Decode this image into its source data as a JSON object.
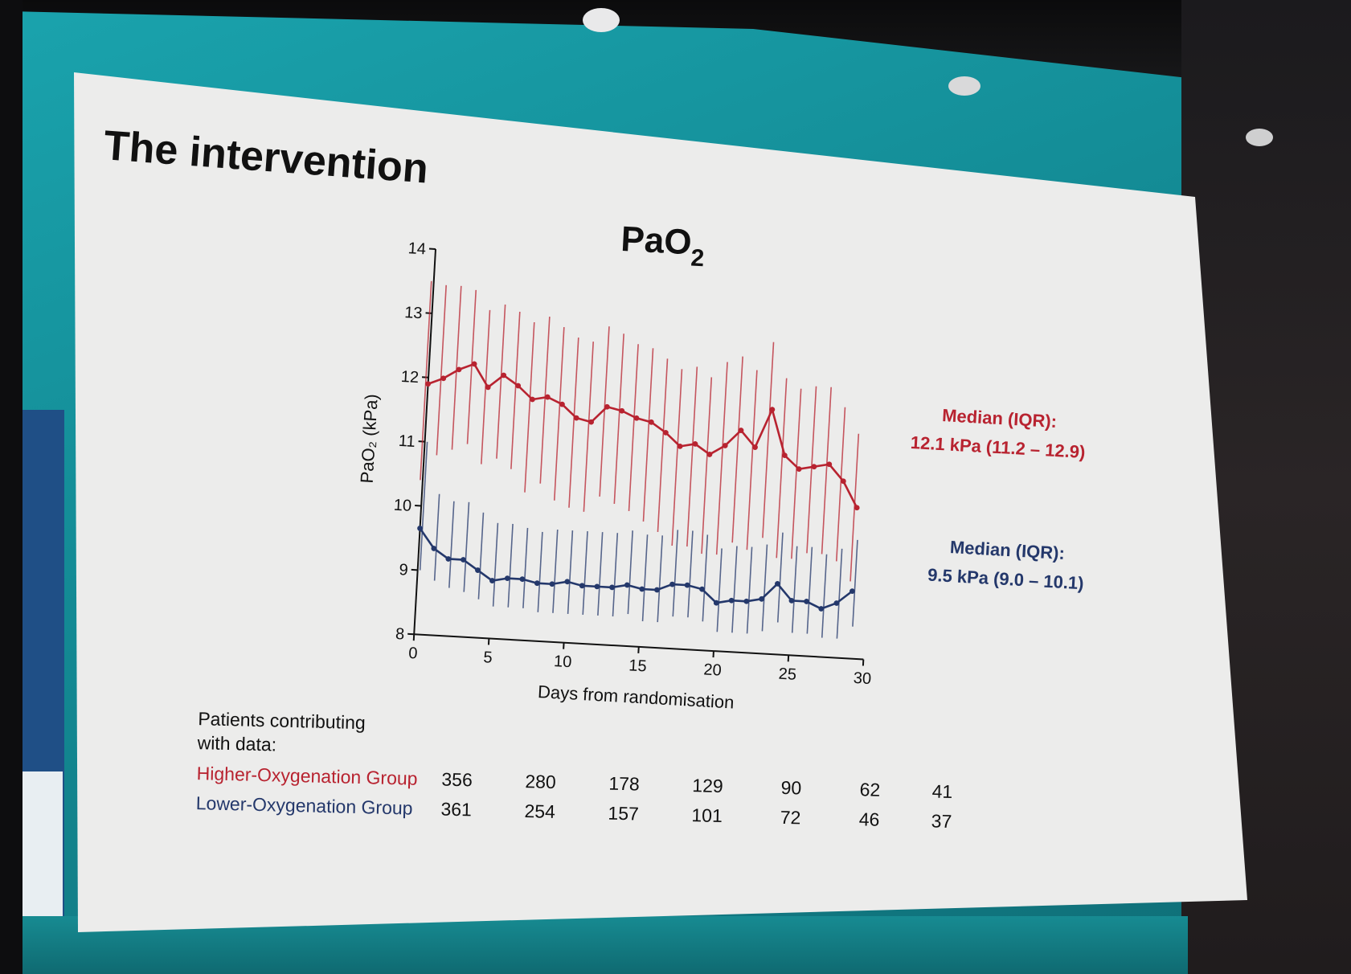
{
  "slide": {
    "title": "The intervention",
    "patients_label_line1": "Patients contributing",
    "patients_label_line2": "with data:"
  },
  "chart_data": {
    "type": "line",
    "title": "PaO",
    "title_subscript": "2",
    "ylabel": "PaO₂ (kPa)",
    "xlabel": "Days from randomisation",
    "xlim": [
      0,
      30
    ],
    "ylim": [
      8,
      14
    ],
    "x_ticks": [
      "0",
      "5",
      "10",
      "15",
      "20",
      "25",
      "30"
    ],
    "y_ticks": [
      "8",
      "9",
      "10",
      "11",
      "12",
      "13",
      "14"
    ],
    "x": [
      0,
      1,
      2,
      3,
      4,
      5,
      6,
      7,
      8,
      9,
      10,
      11,
      12,
      13,
      14,
      15,
      16,
      17,
      18,
      19,
      20,
      21,
      22,
      23,
      24,
      25,
      26,
      27,
      28,
      29
    ],
    "series": [
      {
        "name": "Higher-Oxygenation Group",
        "color": "#b82330",
        "median": [
          11.9,
          12.0,
          12.15,
          12.25,
          11.9,
          12.1,
          11.95,
          11.75,
          11.8,
          11.7,
          11.5,
          11.45,
          11.7,
          11.65,
          11.55,
          11.5,
          11.35,
          11.15,
          11.2,
          11.05,
          11.2,
          11.45,
          11.2,
          11.8,
          11.1,
          10.9,
          10.95,
          11.0,
          10.75,
          10.35
        ],
        "q1": [
          10.4,
          10.8,
          10.9,
          11.0,
          10.7,
          10.8,
          10.65,
          10.3,
          10.45,
          10.2,
          10.1,
          10.05,
          10.3,
          10.2,
          10.1,
          9.95,
          9.8,
          9.6,
          9.6,
          9.5,
          9.5,
          9.7,
          9.6,
          9.8,
          9.5,
          9.5,
          9.6,
          9.6,
          9.5,
          9.2
        ],
        "q3": [
          13.5,
          13.45,
          13.45,
          13.4,
          13.1,
          13.2,
          13.1,
          12.95,
          13.05,
          12.9,
          12.75,
          12.7,
          12.95,
          12.85,
          12.7,
          12.65,
          12.5,
          12.35,
          12.4,
          12.25,
          12.5,
          12.6,
          12.4,
          12.85,
          12.3,
          12.15,
          12.2,
          12.2,
          11.9,
          11.5
        ],
        "annotation_line1": "Median (IQR):",
        "annotation_line2": "12.1 kPa (11.2 – 12.9)"
      },
      {
        "name": "Lower-Oxygenation Group",
        "color": "#24386b",
        "median": [
          9.65,
          9.35,
          9.2,
          9.2,
          9.05,
          8.9,
          8.95,
          8.95,
          8.9,
          8.9,
          8.95,
          8.9,
          8.9,
          8.9,
          8.95,
          8.9,
          8.9,
          9.0,
          9.0,
          8.95,
          8.75,
          8.8,
          8.8,
          8.85,
          9.1,
          8.85,
          8.85,
          8.75,
          8.85,
          9.05
        ],
        "q1": [
          9.0,
          8.85,
          8.75,
          8.7,
          8.6,
          8.5,
          8.5,
          8.5,
          8.45,
          8.45,
          8.45,
          8.45,
          8.45,
          8.45,
          8.5,
          8.4,
          8.4,
          8.5,
          8.5,
          8.45,
          8.3,
          8.3,
          8.3,
          8.35,
          8.5,
          8.35,
          8.35,
          8.3,
          8.3,
          8.5
        ],
        "q3": [
          11.0,
          10.2,
          10.1,
          10.1,
          9.95,
          9.8,
          9.8,
          9.75,
          9.7,
          9.75,
          9.75,
          9.75,
          9.75,
          9.75,
          9.8,
          9.75,
          9.75,
          9.85,
          9.85,
          9.8,
          9.6,
          9.65,
          9.65,
          9.7,
          9.9,
          9.7,
          9.7,
          9.6,
          9.7,
          9.85
        ],
        "annotation_line1": "Median (IQR):",
        "annotation_line2": "9.5 kPa (9.0 – 10.1)"
      }
    ],
    "at_risk_days": [
      "0",
      "5",
      "10",
      "15",
      "20",
      "25",
      "30"
    ],
    "at_risk": [
      {
        "label": "Higher-Oxygenation Group",
        "color": "#b82330",
        "counts": [
          "356",
          "280",
          "178",
          "129",
          "90",
          "62",
          "41"
        ]
      },
      {
        "label": "Lower-Oxygenation Group",
        "color": "#24386b",
        "counts": [
          "361",
          "254",
          "157",
          "101",
          "72",
          "46",
          "37"
        ]
      }
    ]
  }
}
